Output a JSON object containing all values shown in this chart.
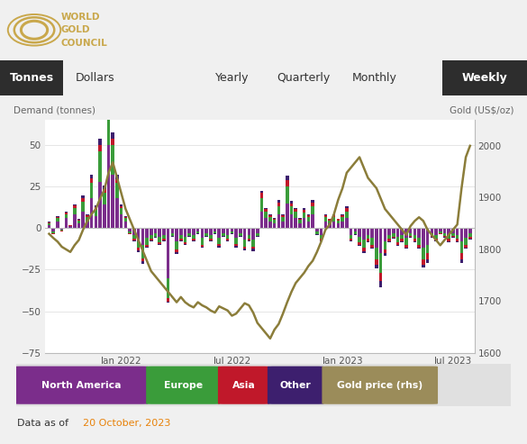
{
  "header_bg": "#0d1f3c",
  "nav_bg": "#ebebeb",
  "chart_bg": "#ffffff",
  "left_ylabel": "Demand (tonnes)",
  "right_ylabel": "Gold (US$/oz)",
  "ylim_left": [
    -75,
    65
  ],
  "ylim_right": [
    1600,
    2050
  ],
  "yticks_left": [
    -75,
    -50,
    -25,
    0,
    25,
    50
  ],
  "yticks_right": [
    1600,
    1700,
    1800,
    1900,
    2000
  ],
  "colors": {
    "north_america": "#7b2d8b",
    "europe": "#3a9c3a",
    "asia": "#c0182a",
    "other": "#3d1f6e",
    "gold_price": "#8b7d3a"
  },
  "legend_labels": [
    "North America",
    "Europe",
    "Asia",
    "Other",
    "Gold price (rhs)"
  ],
  "legend_colors": [
    "#7b2d8b",
    "#3a9c3a",
    "#c0182a",
    "#3d1f6e",
    "#9b8c5a"
  ],
  "footer_text_prefix": "Data as of ",
  "footer_date": "20 October, 2023",
  "footer_date_color": "#e8820a",
  "north_america": [
    2,
    -2,
    4,
    -1,
    6,
    1,
    8,
    3,
    10,
    4,
    18,
    7,
    28,
    14,
    50,
    32,
    18,
    8,
    4,
    -2,
    -4,
    -8,
    -10,
    -6,
    -4,
    -3,
    -5,
    -4,
    -30,
    -3,
    -8,
    -4,
    -5,
    -3,
    -4,
    -2,
    -6,
    -3,
    -4,
    -2,
    -6,
    -3,
    -4,
    -2,
    -6,
    -3,
    -7,
    -4,
    -7,
    -3,
    10,
    6,
    4,
    3,
    8,
    4,
    15,
    8,
    6,
    3,
    6,
    4,
    8,
    -2,
    -4,
    4,
    3,
    4,
    3,
    4,
    6,
    -4,
    -2,
    -5,
    -7,
    -4,
    -6,
    -12,
    -15,
    -8,
    -4,
    -3,
    -5,
    -4,
    -6,
    -3,
    -4,
    -6,
    -12,
    -10,
    -3,
    -4,
    -2,
    -3,
    -4,
    -3,
    -4,
    -8,
    -6,
    -3
  ],
  "europe": [
    1,
    -1,
    2,
    -0.5,
    2.5,
    0.5,
    4,
    1.5,
    6,
    2.5,
    9,
    4,
    18,
    7,
    28,
    18,
    9,
    4,
    2,
    -1,
    -2.5,
    -4,
    -8,
    -4,
    -2.5,
    -2,
    -3.5,
    -2.5,
    -12,
    -1.5,
    -5,
    -2.5,
    -3.5,
    -1.5,
    -2.5,
    -1,
    -4,
    -1.5,
    -2.5,
    -1,
    -3.5,
    -1.5,
    -2.5,
    -1,
    -3.5,
    -1.5,
    -4,
    -2.5,
    -4,
    -1.5,
    8,
    4,
    2.5,
    2,
    5,
    2.5,
    10,
    5,
    4,
    2,
    3.5,
    2.5,
    5,
    -1.5,
    -2.5,
    2.5,
    1.5,
    2.5,
    1.5,
    2.5,
    4,
    -2.5,
    -1.5,
    -3.5,
    -5,
    -2.5,
    -4,
    -7,
    -12,
    -5,
    -2.5,
    -2,
    -3.5,
    -2.5,
    -4,
    -1.5,
    -2.5,
    -4,
    -7,
    -5,
    -1.5,
    -2.5,
    -1,
    -1.5,
    -2.5,
    -1.5,
    -2.5,
    -7,
    -4,
    -2.5
  ],
  "asia": [
    0.5,
    -0.5,
    0.8,
    -0.3,
    1.0,
    0.2,
    1.5,
    0.7,
    2,
    1,
    3,
    1.5,
    4,
    2.5,
    5,
    3.5,
    2.5,
    1.2,
    0.8,
    -0.4,
    -0.8,
    -1.5,
    -2,
    -1,
    -0.8,
    -0.5,
    -1.2,
    -0.8,
    -2,
    -0.4,
    -1.5,
    -0.8,
    -1.2,
    -0.4,
    -0.8,
    -0.3,
    -1.2,
    -0.4,
    -0.8,
    -0.3,
    -1.2,
    -0.4,
    -0.8,
    -0.3,
    -1.2,
    -0.4,
    -1.5,
    -0.8,
    -1.5,
    -0.4,
    3,
    1.5,
    1.2,
    0.8,
    2.5,
    1.2,
    4,
    2,
    1.5,
    0.8,
    1.5,
    1.2,
    2.5,
    -0.4,
    -0.8,
    1.2,
    0.8,
    1.2,
    0.8,
    1.2,
    2,
    -0.8,
    -0.4,
    -1.5,
    -2,
    -1.2,
    -1.5,
    -3,
    -5,
    -2,
    -1.2,
    -0.8,
    -1.5,
    -1.2,
    -1.5,
    -0.8,
    -1.2,
    -1.5,
    -3,
    -4,
    -0.8,
    -0.8,
    -0.4,
    -0.8,
    -1.2,
    -0.8,
    -1.2,
    -4,
    -1.5,
    -0.8
  ],
  "other": [
    0.3,
    -0.2,
    0.4,
    -0.2,
    0.6,
    0.1,
    0.8,
    0.4,
    1.5,
    0.8,
    2,
    1.2,
    3.5,
    2,
    6,
    4,
    2.5,
    0.8,
    0.4,
    -0.2,
    -0.4,
    -0.8,
    -1.5,
    -0.8,
    -0.4,
    -0.3,
    -0.6,
    -0.4,
    -1,
    -0.2,
    -1.2,
    -0.4,
    -0.6,
    -0.2,
    -0.4,
    -0.2,
    -0.8,
    -0.2,
    -0.4,
    -0.2,
    -0.8,
    -0.2,
    -0.4,
    -0.2,
    -0.8,
    -0.4,
    -1,
    -0.6,
    -1.2,
    -0.4,
    1.5,
    0.8,
    0.6,
    0.4,
    1.2,
    0.6,
    2.5,
    1.2,
    0.8,
    0.4,
    0.8,
    0.6,
    1.2,
    -0.4,
    -0.6,
    0.6,
    0.4,
    0.6,
    0.4,
    0.6,
    1.2,
    -0.6,
    -0.4,
    -0.8,
    -1.2,
    -0.6,
    -0.8,
    -2,
    -3.5,
    -1.5,
    -0.6,
    -0.4,
    -0.8,
    -0.6,
    -0.8,
    -0.4,
    -0.6,
    -0.8,
    -1.5,
    -2,
    -0.4,
    -0.4,
    -0.2,
    -0.4,
    -0.6,
    -0.4,
    -0.6,
    -2,
    -0.8,
    -0.4
  ],
  "gold_price": [
    1830,
    1822,
    1815,
    1805,
    1800,
    1795,
    1808,
    1818,
    1838,
    1855,
    1868,
    1878,
    1898,
    1915,
    1948,
    1968,
    1938,
    1908,
    1878,
    1858,
    1838,
    1818,
    1798,
    1778,
    1758,
    1748,
    1738,
    1728,
    1718,
    1708,
    1698,
    1708,
    1698,
    1692,
    1688,
    1698,
    1692,
    1688,
    1682,
    1678,
    1690,
    1686,
    1682,
    1672,
    1676,
    1686,
    1696,
    1692,
    1678,
    1658,
    1648,
    1638,
    1628,
    1645,
    1656,
    1676,
    1698,
    1718,
    1735,
    1745,
    1755,
    1768,
    1778,
    1795,
    1815,
    1838,
    1848,
    1868,
    1896,
    1918,
    1948,
    1958,
    1968,
    1978,
    1958,
    1938,
    1928,
    1918,
    1898,
    1878,
    1868,
    1858,
    1848,
    1838,
    1828,
    1845,
    1855,
    1862,
    1855,
    1838,
    1828,
    1818,
    1808,
    1818,
    1828,
    1838,
    1848,
    1918,
    1978,
    2000
  ],
  "xtick_positions": [
    4,
    17,
    30,
    43,
    56,
    69,
    82,
    95
  ],
  "xtick_labels": [
    "",
    "Jan 2022",
    "",
    "Jul 2022",
    "",
    "Jan 2023",
    "",
    "Jul 2023"
  ]
}
